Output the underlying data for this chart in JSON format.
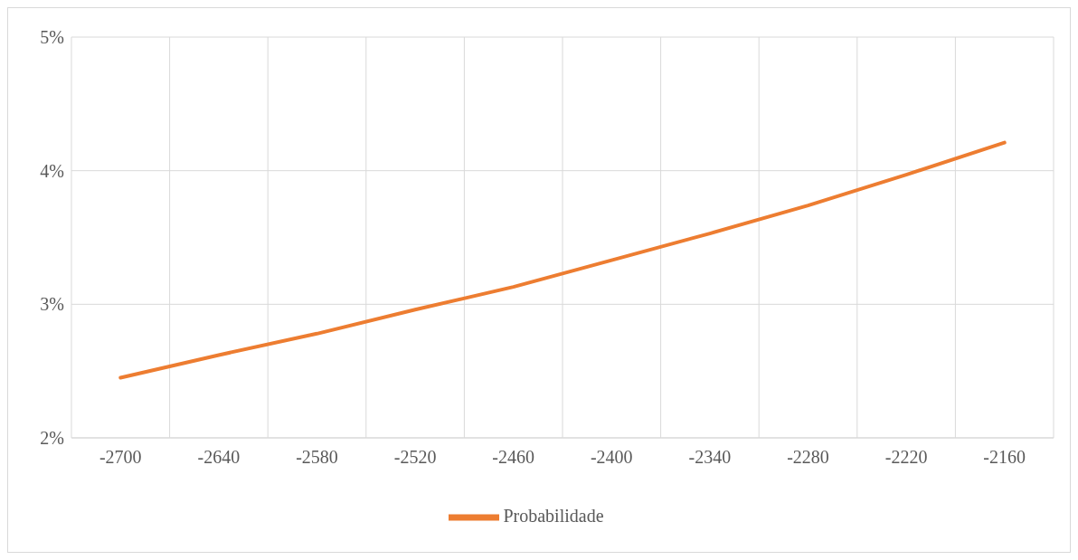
{
  "chart_data": {
    "type": "line",
    "x": [
      -2700,
      -2640,
      -2580,
      -2520,
      -2460,
      -2400,
      -2340,
      -2280,
      -2220,
      -2160
    ],
    "series": [
      {
        "name": "Probabilidade",
        "color": "#ed7d31",
        "values": [
          2.45,
          2.62,
          2.78,
          2.96,
          3.13,
          3.33,
          3.53,
          3.74,
          3.97,
          4.21
        ]
      }
    ],
    "xlim": [
      -2730,
      -2130
    ],
    "xticks": [
      {
        "value": -2730,
        "label": null
      },
      -2700,
      {
        "value": -2670,
        "label": null
      },
      -2640,
      {
        "value": -2610,
        "label": null
      },
      -2580,
      {
        "value": -2550,
        "label": null
      },
      -2520,
      {
        "value": -2490,
        "label": null
      },
      -2460,
      {
        "value": -2430,
        "label": null
      },
      -2400,
      {
        "value": -2370,
        "label": null
      },
      -2340,
      {
        "value": -2310,
        "label": null
      },
      -2280,
      {
        "value": -2250,
        "label": null
      },
      -2220,
      {
        "value": -2190,
        "label": null
      },
      -2160,
      {
        "value": -2130,
        "label": null
      }
    ],
    "ylim": [
      2,
      5
    ],
    "yticks": [
      {
        "value": 2,
        "label": "2%"
      },
      {
        "value": 3,
        "label": "3%"
      },
      {
        "value": 4,
        "label": "4%"
      },
      {
        "value": 5,
        "label": "5%"
      }
    ],
    "grid": true,
    "legend": "bottom",
    "marker": "none",
    "line_style": "solid"
  }
}
